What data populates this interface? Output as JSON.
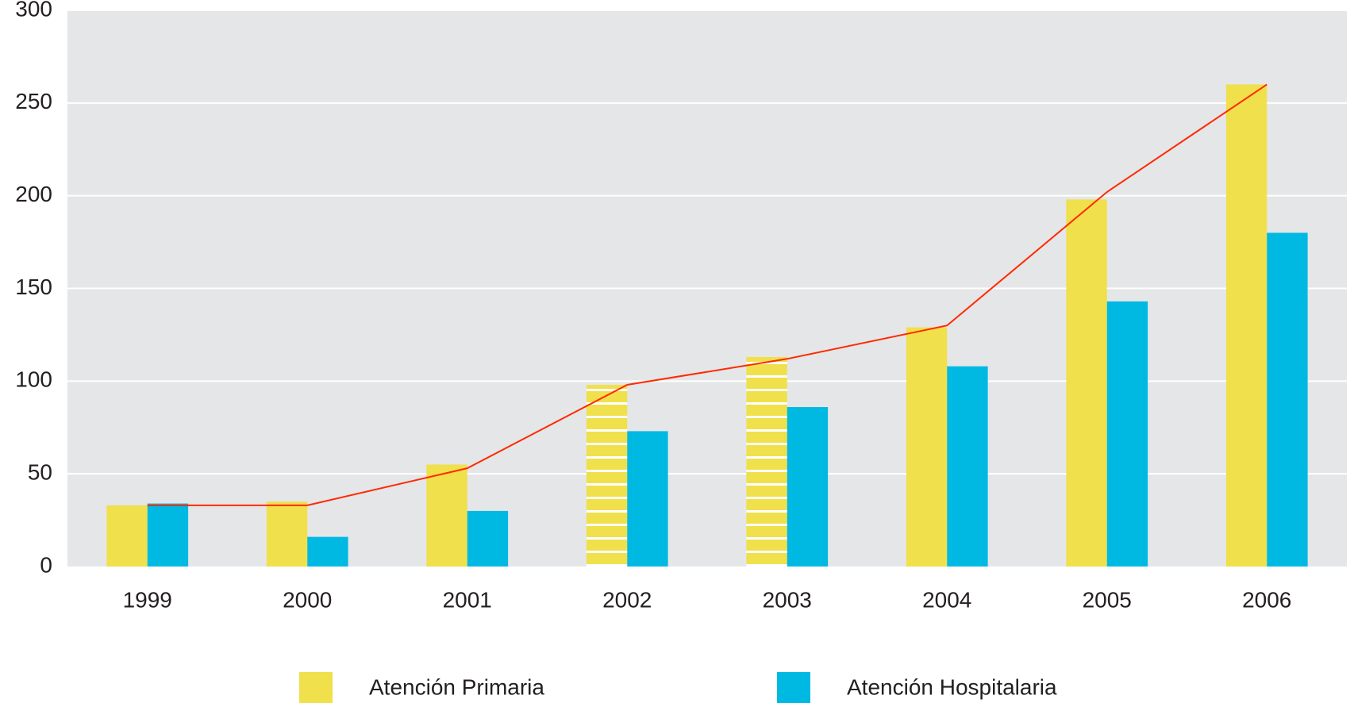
{
  "chart_data": {
    "type": "bar",
    "categories": [
      "1999",
      "2000",
      "2001",
      "2002",
      "2003",
      "2004",
      "2005",
      "2006"
    ],
    "series": [
      {
        "name": "Atención Primaria",
        "color": "#efe04c",
        "values": [
          33,
          35,
          55,
          98,
          113,
          129,
          198,
          260
        ],
        "hatched": [
          false,
          false,
          false,
          true,
          true,
          false,
          false,
          false
        ]
      },
      {
        "name": "Atención Hospitalaria",
        "color": "#00b9e3",
        "values": [
          34,
          16,
          30,
          73,
          86,
          108,
          143,
          180
        ]
      },
      {
        "type": "line",
        "color": "#ff2a00",
        "values": [
          33,
          33,
          53,
          98,
          112,
          130,
          202,
          260
        ]
      }
    ],
    "ylim": [
      0,
      300
    ],
    "yticks": [
      0,
      50,
      100,
      150,
      200,
      250,
      300
    ],
    "grid": true,
    "plot_background": "#e5e6e8"
  }
}
